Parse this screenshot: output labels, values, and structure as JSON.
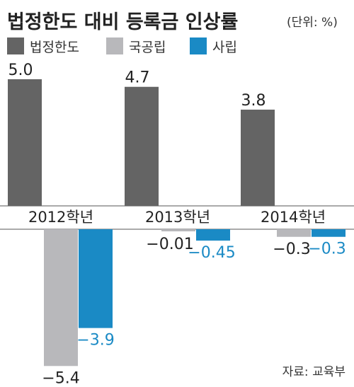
{
  "chart_data": {
    "type": "bar",
    "title": "법정한도 대비 등록금 인상률",
    "unit": "(단위: %)",
    "source": "자료: 교육부",
    "categories": [
      "2012학년",
      "2013학년",
      "2014학년"
    ],
    "series": [
      {
        "name": "법정한도",
        "values": [
          5.0,
          4.7,
          3.8
        ],
        "labels": [
          "5.0",
          "4.7",
          "3.8"
        ],
        "color": "#646464"
      },
      {
        "name": "국공립",
        "values": [
          -5.4,
          -0.01,
          -0.3
        ],
        "labels": [
          "−5.4",
          "−0.01",
          "−0.3"
        ],
        "color": "#b8b8bb"
      },
      {
        "name": "사립",
        "values": [
          -3.9,
          -0.45,
          -0.3
        ],
        "labels": [
          "−3.9",
          "−0.45",
          "−0.3"
        ],
        "color": "#1a8ac5"
      }
    ],
    "colors": {
      "label_default": "#222222",
      "label_private": "#1a8ac5",
      "baseline": "#555555"
    }
  }
}
